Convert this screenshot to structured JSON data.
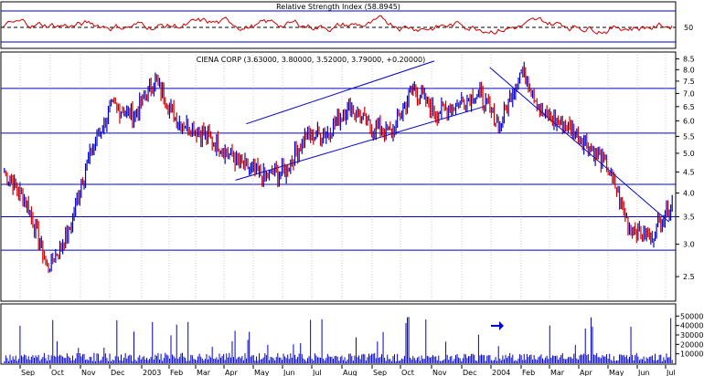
{
  "chart_data": [
    {
      "panel": "rsi",
      "type": "line",
      "title": "Relative Strength Index (58.8945)",
      "y_ticks": [
        50
      ],
      "ylim": [
        0,
        100
      ],
      "reference_level": 50,
      "series_color": "#cc0000"
    },
    {
      "panel": "price",
      "type": "candlestick",
      "title": "CIENA CORP (3.63000, 3.80000, 3.52000, 3.79000, +0.20000)",
      "y_ticks": [
        "8.5",
        "8.0",
        "7.5",
        "7.0",
        "6.5",
        "6.0",
        "5.5",
        "5.0",
        "4.5",
        "4.0",
        "3.5",
        "3.0",
        "2.5"
      ],
      "ylim": [
        2.2,
        8.7
      ],
      "log_scale": true,
      "horizontal_levels": [
        7.2,
        5.6,
        4.2,
        3.5,
        2.9
      ],
      "channel": {
        "lower": [
          [
            "2003-04-20",
            4.3
          ],
          [
            "2003-12-31",
            6.5
          ]
        ],
        "upper": [
          [
            "2003-05-01",
            5.9
          ],
          [
            "2003-11-10",
            8.4
          ]
        ]
      },
      "downtrend": [
        [
          "2004-01-06",
          8.1
        ],
        [
          "2004-07-08",
          3.4
        ]
      ],
      "x_labels": [
        "Sep",
        "Oct",
        "Nov",
        "Dec",
        "2003",
        "Feb",
        "Mar",
        "Apr",
        "May",
        "Jun",
        "Jul",
        "Aug",
        "Sep",
        "Oct",
        "Nov",
        "Dec",
        "2004",
        "Feb",
        "Mar",
        "Apr",
        "May",
        "Jun",
        "Jul"
      ],
      "approx_closes": [
        [
          "Sep",
          4.5
        ],
        [
          "Sep",
          3.8
        ],
        [
          "Oct",
          2.6
        ],
        [
          "Oct",
          3.2
        ],
        [
          "Nov",
          5.0
        ],
        [
          "Nov",
          6.5
        ],
        [
          "Dec",
          6.2
        ],
        [
          "2003",
          7.5
        ],
        [
          "Feb",
          6.0
        ],
        [
          "Feb",
          5.7
        ],
        [
          "Mar",
          5.2
        ],
        [
          "Mar",
          4.7
        ],
        [
          "Apr",
          4.4
        ],
        [
          "Apr",
          4.5
        ],
        [
          "May",
          5.5
        ],
        [
          "Jun",
          5.6
        ],
        [
          "Jul",
          6.5
        ],
        [
          "Jul",
          5.8
        ],
        [
          "Aug",
          5.6
        ],
        [
          "Sep",
          7.2
        ],
        [
          "Oct",
          6.3
        ],
        [
          "Nov",
          6.6
        ],
        [
          "Nov",
          7.0
        ],
        [
          "Dec",
          5.8
        ],
        [
          "2004",
          8.0
        ],
        [
          "Feb",
          6.2
        ],
        [
          "Mar",
          5.9
        ],
        [
          "Apr",
          5.3
        ],
        [
          "Apr",
          4.6
        ],
        [
          "May",
          3.3
        ],
        [
          "Jun",
          3.1
        ],
        [
          "Jul",
          3.8
        ]
      ],
      "up_color": "#0000cc",
      "down_color": "#cc0000"
    },
    {
      "panel": "volume",
      "type": "bar",
      "y_ticks": [
        "50000",
        "40000",
        "30000",
        "20000",
        "10000"
      ],
      "ylim": [
        0,
        60000
      ],
      "bar_color": "#0000cc",
      "marker": "arrow"
    }
  ]
}
